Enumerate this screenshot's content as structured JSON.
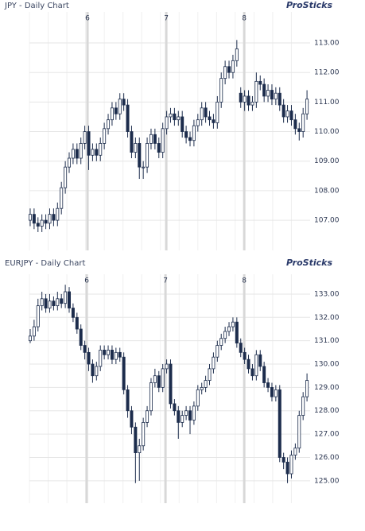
{
  "chart_data": [
    {
      "type": "candlestick",
      "title": "JPY - Daily Chart",
      "brand": "ProSticks",
      "color": "#1c2c4c",
      "xlim": [
        -0.2,
        71.8
      ],
      "xticks": [
        {
          "value": 14.7,
          "label": "6"
        },
        {
          "value": 34.9,
          "label": "7"
        },
        {
          "value": 54.9,
          "label": "8"
        }
      ],
      "ylim": [
        105.98,
        114.05
      ],
      "yticks": [
        {
          "value": 107,
          "label": "107.00"
        },
        {
          "value": 108,
          "label": "108.00"
        },
        {
          "value": 109,
          "label": "109.00"
        },
        {
          "value": 110,
          "label": "110.00"
        },
        {
          "value": 111,
          "label": "111.00"
        },
        {
          "value": 112,
          "label": "112.00"
        },
        {
          "value": 113,
          "label": "113.00"
        }
      ],
      "open": [
        107.0,
        107.2,
        106.9,
        106.8,
        107.0,
        106.9,
        107.2,
        107.0,
        107.4,
        108.1,
        108.8,
        109.1,
        109.4,
        109.1,
        109.6,
        110.0,
        109.2,
        109.4,
        109.2,
        109.6,
        110.1,
        110.4,
        110.8,
        110.6,
        111.1,
        110.9,
        110.0,
        109.3,
        109.6,
        108.8,
        108.8,
        109.6,
        109.9,
        109.6,
        109.3,
        110.1,
        110.5,
        110.6,
        110.4,
        110.5,
        110.0,
        109.8,
        109.7,
        110.2,
        110.4,
        110.8,
        110.5,
        110.4,
        110.3,
        111.0,
        111.8,
        112.2,
        112.0,
        112.4,
        111.3,
        111.0,
        111.2,
        110.9,
        111.0,
        111.7,
        111.6,
        111.2,
        111.4,
        111.1,
        111.3,
        110.9,
        110.5,
        110.7,
        110.4,
        110.1,
        110.0,
        110.6
      ],
      "high": [
        107.4,
        107.4,
        107.1,
        107.2,
        107.2,
        107.4,
        107.4,
        107.6,
        108.3,
        109.0,
        109.3,
        109.6,
        109.6,
        109.8,
        110.2,
        110.2,
        109.6,
        109.6,
        109.8,
        110.3,
        110.6,
        111.0,
        111.0,
        111.3,
        111.3,
        111.1,
        110.2,
        109.8,
        109.8,
        109.0,
        109.8,
        110.1,
        110.1,
        109.8,
        110.3,
        110.7,
        110.8,
        110.8,
        110.7,
        110.7,
        110.2,
        110.0,
        110.4,
        110.6,
        111.0,
        111.0,
        110.7,
        110.6,
        111.2,
        112.0,
        112.4,
        112.4,
        112.6,
        113.1,
        111.5,
        111.4,
        111.4,
        111.2,
        112.0,
        111.9,
        111.8,
        111.6,
        111.6,
        111.5,
        111.5,
        111.1,
        110.9,
        110.9,
        110.6,
        110.3,
        110.8,
        111.4
      ],
      "low": [
        106.8,
        106.7,
        106.6,
        106.6,
        106.7,
        106.7,
        106.8,
        106.8,
        107.2,
        107.9,
        108.6,
        108.9,
        108.9,
        108.9,
        109.4,
        108.7,
        109.0,
        109.0,
        109.0,
        109.4,
        109.9,
        110.2,
        110.4,
        110.4,
        110.7,
        109.8,
        109.1,
        109.1,
        108.4,
        108.4,
        108.6,
        109.4,
        109.4,
        109.1,
        109.1,
        109.9,
        110.3,
        110.2,
        110.2,
        109.8,
        109.6,
        109.5,
        109.5,
        110.0,
        110.2,
        110.3,
        110.2,
        110.1,
        110.1,
        110.8,
        111.6,
        111.8,
        111.8,
        112.2,
        110.8,
        110.7,
        110.7,
        110.7,
        110.8,
        111.4,
        111.0,
        111.0,
        110.9,
        110.9,
        110.7,
        110.3,
        110.3,
        110.2,
        109.9,
        109.7,
        109.8,
        110.4
      ],
      "close": [
        107.2,
        106.9,
        106.8,
        107.0,
        106.9,
        107.2,
        107.0,
        107.4,
        108.1,
        108.8,
        109.1,
        109.4,
        109.1,
        109.6,
        110.0,
        109.2,
        109.4,
        109.2,
        109.6,
        110.1,
        110.4,
        110.8,
        110.6,
        111.1,
        110.9,
        110.0,
        109.3,
        109.6,
        108.8,
        108.8,
        109.6,
        109.9,
        109.6,
        109.3,
        110.1,
        110.5,
        110.6,
        110.4,
        110.5,
        110.0,
        109.8,
        109.7,
        110.2,
        110.4,
        110.8,
        110.5,
        110.4,
        110.3,
        111.0,
        111.8,
        112.2,
        112.0,
        112.4,
        112.8,
        111.0,
        111.2,
        110.9,
        111.0,
        111.7,
        111.6,
        111.2,
        111.4,
        111.1,
        111.3,
        110.9,
        110.5,
        110.7,
        110.4,
        110.1,
        110.0,
        110.6,
        111.1
      ]
    },
    {
      "type": "candlestick",
      "title": "EURJPY - Daily Chart",
      "brand": "ProSticks",
      "color": "#1c2c4c",
      "xlim": [
        -0.2,
        71.8
      ],
      "xticks": [
        {
          "value": 14.5,
          "label": "6"
        },
        {
          "value": 34.7,
          "label": "7"
        },
        {
          "value": 54.9,
          "label": "8"
        }
      ],
      "ylim": [
        124.04,
        133.85
      ],
      "yticks": [
        {
          "value": 125,
          "label": "125.00"
        },
        {
          "value": 126,
          "label": "126.00"
        },
        {
          "value": 127,
          "label": "127.00"
        },
        {
          "value": 128,
          "label": "128.00"
        },
        {
          "value": 129,
          "label": "129.00"
        },
        {
          "value": 130,
          "label": "130.00"
        },
        {
          "value": 131,
          "label": "131.00"
        },
        {
          "value": 132,
          "label": "132.00"
        },
        {
          "value": 133,
          "label": "133.00"
        }
      ],
      "open": [
        131.0,
        131.2,
        131.6,
        132.5,
        132.8,
        132.4,
        132.7,
        132.5,
        132.8,
        132.6,
        133.1,
        132.4,
        132.0,
        131.5,
        130.8,
        130.5,
        130.0,
        129.5,
        129.9,
        130.6,
        130.4,
        130.6,
        130.2,
        130.5,
        130.3,
        128.9,
        128.0,
        127.3,
        126.2,
        126.5,
        127.5,
        128.0,
        129.2,
        129.5,
        129.0,
        129.8,
        130.0,
        128.3,
        128.0,
        127.5,
        127.8,
        128.0,
        127.6,
        128.2,
        128.9,
        129.0,
        129.3,
        129.8,
        130.3,
        130.8,
        131.1,
        131.4,
        131.6,
        131.8,
        130.9,
        130.5,
        130.2,
        129.8,
        129.5,
        130.4,
        129.9,
        129.2,
        129.0,
        128.6,
        128.9,
        126.0,
        125.8,
        125.3,
        126.1,
        126.4,
        127.8,
        128.6
      ],
      "high": [
        131.5,
        131.9,
        132.8,
        133.1,
        133.0,
        133.0,
        132.9,
        133.1,
        133.0,
        133.4,
        133.3,
        132.6,
        132.2,
        131.7,
        131.0,
        130.7,
        130.2,
        130.1,
        130.8,
        130.8,
        130.8,
        130.8,
        130.7,
        130.7,
        130.5,
        129.1,
        128.2,
        127.5,
        126.8,
        127.7,
        128.2,
        129.4,
        129.8,
        129.7,
        130.0,
        130.2,
        130.2,
        128.5,
        128.2,
        128.0,
        128.2,
        128.2,
        128.4,
        129.1,
        129.2,
        129.5,
        130.0,
        130.5,
        131.0,
        131.3,
        131.6,
        131.8,
        132.0,
        132.0,
        131.1,
        130.7,
        130.4,
        130.0,
        130.6,
        130.6,
        130.1,
        129.4,
        129.2,
        129.1,
        129.1,
        126.2,
        126.0,
        126.3,
        126.6,
        128.0,
        128.8,
        129.6
      ],
      "low": [
        130.9,
        131.0,
        131.4,
        132.3,
        132.2,
        132.2,
        132.3,
        132.3,
        132.4,
        132.4,
        132.2,
        131.8,
        131.3,
        130.6,
        130.2,
        129.7,
        129.2,
        129.3,
        129.7,
        130.2,
        130.2,
        130.0,
        130.0,
        130.1,
        128.7,
        127.7,
        127.0,
        124.9,
        125.0,
        126.3,
        127.3,
        127.8,
        129.0,
        128.8,
        128.8,
        129.6,
        128.1,
        127.8,
        126.8,
        127.3,
        127.6,
        127.0,
        127.4,
        128.0,
        128.7,
        128.8,
        129.1,
        129.6,
        130.1,
        130.6,
        130.9,
        131.2,
        131.4,
        130.7,
        130.3,
        130.0,
        129.6,
        129.3,
        129.3,
        129.7,
        129.0,
        128.8,
        128.4,
        128.4,
        125.8,
        125.5,
        124.9,
        125.1,
        125.9,
        126.2,
        127.6,
        128.4
      ],
      "close": [
        131.2,
        131.6,
        132.5,
        132.8,
        132.4,
        132.7,
        132.5,
        132.8,
        132.6,
        133.1,
        132.4,
        132.0,
        131.5,
        130.8,
        130.5,
        130.0,
        129.5,
        129.9,
        130.6,
        130.4,
        130.6,
        130.2,
        130.5,
        130.3,
        128.9,
        128.0,
        127.3,
        126.2,
        126.5,
        127.5,
        128.0,
        129.2,
        129.5,
        129.0,
        129.8,
        130.0,
        128.3,
        128.0,
        127.5,
        127.8,
        128.0,
        127.6,
        128.2,
        128.9,
        129.0,
        129.3,
        129.8,
        130.3,
        130.8,
        131.1,
        131.4,
        131.6,
        131.8,
        130.9,
        130.5,
        130.2,
        129.8,
        129.5,
        130.4,
        129.9,
        129.2,
        129.0,
        128.6,
        128.9,
        126.0,
        125.8,
        125.3,
        126.1,
        126.4,
        127.8,
        128.6,
        129.3
      ]
    }
  ]
}
